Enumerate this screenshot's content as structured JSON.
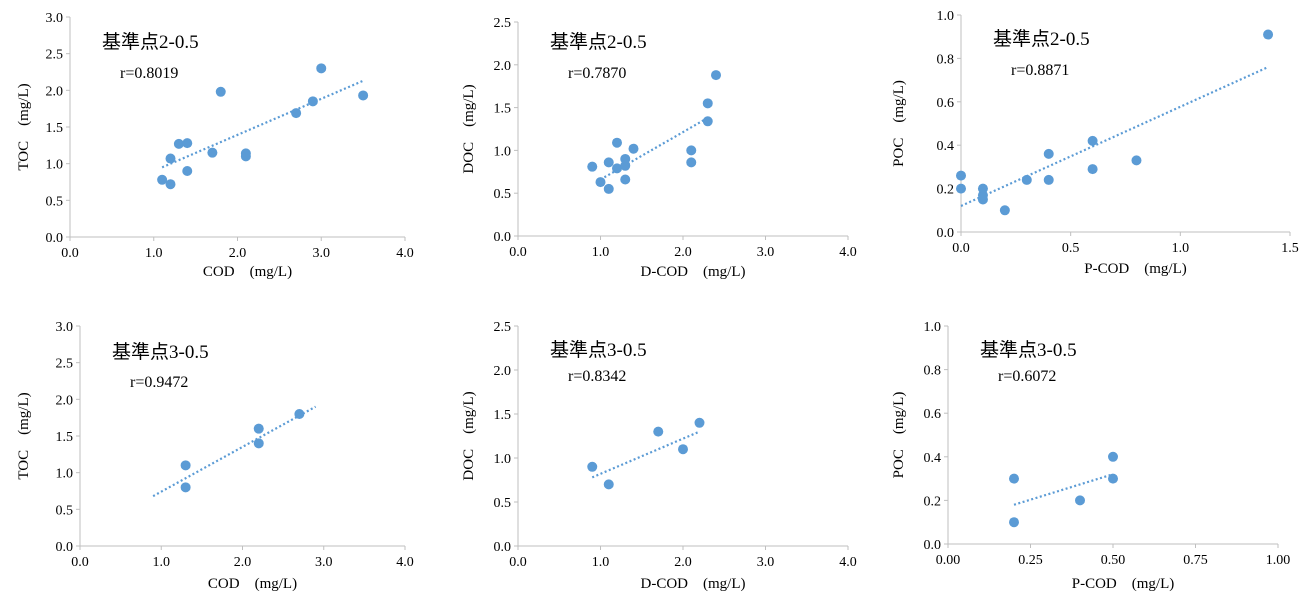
{
  "colors": {
    "marker": "#5b9bd5",
    "trend": "#5b9bd5",
    "axis": "#bfbfbf",
    "text": "#000000"
  },
  "chart_data": [
    {
      "type": "scatter",
      "title": "基準点2-0.5",
      "annotation": "r=0.8019",
      "xlabel": "COD　(mg/L)",
      "ylabel": "TOC　(mg/L)",
      "xlim": [
        0,
        4
      ],
      "ylim": [
        0,
        3
      ],
      "xticks": [
        0,
        1,
        2,
        3,
        4
      ],
      "yticks": [
        0,
        0.5,
        1,
        1.5,
        2,
        2.5,
        3
      ],
      "xtick_labels": [
        "0.0",
        "1.0",
        "2.0",
        "3.0",
        "4.0"
      ],
      "ytick_labels": [
        "0.0",
        "0.5",
        "1.0",
        "1.5",
        "2.0",
        "2.5",
        "3.0"
      ],
      "x": [
        1.1,
        1.2,
        1.2,
        1.3,
        1.4,
        1.4,
        1.7,
        1.8,
        2.1,
        2.1,
        2.7,
        2.9,
        3.0,
        3.5
      ],
      "y": [
        0.78,
        0.72,
        1.07,
        1.27,
        0.9,
        1.28,
        1.15,
        1.98,
        1.1,
        1.14,
        1.69,
        1.85,
        2.3,
        1.93
      ],
      "trendline": {
        "x": [
          1.1,
          3.5
        ],
        "y": [
          0.95,
          2.13
        ]
      }
    },
    {
      "type": "scatter",
      "title": "基準点2-0.5",
      "annotation": "r=0.7870",
      "xlabel": "D-COD　(mg/L)",
      "ylabel": "DOC　(mg/L)",
      "xlim": [
        0,
        4
      ],
      "ylim": [
        0,
        2.5
      ],
      "xticks": [
        0,
        1,
        2,
        3,
        4
      ],
      "yticks": [
        0,
        0.5,
        1,
        1.5,
        2,
        2.5
      ],
      "xtick_labels": [
        "0.0",
        "1.0",
        "2.0",
        "3.0",
        "4.0"
      ],
      "ytick_labels": [
        "0.0",
        "0.5",
        "1.0",
        "1.5",
        "2.0",
        "2.5"
      ],
      "x": [
        0.9,
        1.0,
        1.1,
        1.1,
        1.2,
        1.2,
        1.3,
        1.3,
        1.3,
        1.4,
        2.1,
        2.1,
        2.3,
        2.3,
        2.4
      ],
      "y": [
        0.81,
        0.63,
        0.55,
        0.86,
        0.79,
        1.09,
        0.66,
        0.82,
        0.9,
        1.02,
        0.86,
        1.0,
        1.34,
        1.55,
        1.88
      ],
      "trendline": {
        "x": [
          1.0,
          2.3
        ],
        "y": [
          0.66,
          1.38
        ]
      }
    },
    {
      "type": "scatter",
      "title": "基準点2-0.5",
      "annotation": "r=0.8871",
      "xlabel": "P-COD　(mg/L)",
      "ylabel": "POC　(mg/L)",
      "xlim": [
        0,
        1.5
      ],
      "ylim": [
        0,
        1
      ],
      "xticks": [
        0,
        0.5,
        1,
        1.5
      ],
      "yticks": [
        0,
        0.2,
        0.4,
        0.6,
        0.8,
        1
      ],
      "xtick_labels": [
        "0.0",
        "0.5",
        "1.0",
        "1.5"
      ],
      "ytick_labels": [
        "0.0",
        "0.2",
        "0.4",
        "0.6",
        "0.8",
        "1.0"
      ],
      "x": [
        0.0,
        0.0,
        0.1,
        0.1,
        0.1,
        0.2,
        0.3,
        0.4,
        0.4,
        0.6,
        0.6,
        0.8,
        1.4
      ],
      "y": [
        0.2,
        0.26,
        0.15,
        0.17,
        0.2,
        0.1,
        0.24,
        0.24,
        0.36,
        0.29,
        0.42,
        0.33,
        0.91
      ],
      "trendline": {
        "x": [
          0.0,
          1.4
        ],
        "y": [
          0.12,
          0.76
        ]
      }
    },
    {
      "type": "scatter",
      "title": "基準点3-0.5",
      "annotation": "r=0.9472",
      "xlabel": "COD　(mg/L)",
      "ylabel": "TOC　(mg/L)",
      "xlim": [
        0,
        4
      ],
      "ylim": [
        0,
        3
      ],
      "xticks": [
        0,
        1,
        2,
        3,
        4
      ],
      "yticks": [
        0,
        0.5,
        1,
        1.5,
        2,
        2.5,
        3
      ],
      "xtick_labels": [
        "0.0",
        "1.0",
        "2.0",
        "3.0",
        "4.0"
      ],
      "ytick_labels": [
        "0.0",
        "0.5",
        "1.0",
        "1.5",
        "2.0",
        "2.5",
        "3.0"
      ],
      "x": [
        1.3,
        1.3,
        2.2,
        2.2,
        2.7
      ],
      "y": [
        0.8,
        1.1,
        1.4,
        1.6,
        1.8
      ],
      "trendline": {
        "x": [
          0.9,
          2.9
        ],
        "y": [
          0.68,
          1.9
        ]
      }
    },
    {
      "type": "scatter",
      "title": "基準点3-0.5",
      "annotation": "r=0.8342",
      "xlabel": "D-COD　(mg/L)",
      "ylabel": "DOC　(mg/L)",
      "xlim": [
        0,
        4
      ],
      "ylim": [
        0,
        2.5
      ],
      "xticks": [
        0,
        1,
        2,
        3,
        4
      ],
      "yticks": [
        0,
        0.5,
        1,
        1.5,
        2,
        2.5
      ],
      "xtick_labels": [
        "0.0",
        "1.0",
        "2.0",
        "3.0",
        "4.0"
      ],
      "ytick_labels": [
        "0.0",
        "0.5",
        "1.0",
        "1.5",
        "2.0",
        "2.5"
      ],
      "x": [
        0.9,
        1.1,
        1.7,
        2.0,
        2.2
      ],
      "y": [
        0.9,
        0.7,
        1.3,
        1.1,
        1.4
      ],
      "trendline": {
        "x": [
          0.9,
          2.2
        ],
        "y": [
          0.78,
          1.3
        ]
      }
    },
    {
      "type": "scatter",
      "title": "基準点3-0.5",
      "annotation": "r=0.6072",
      "xlabel": "P-COD　(mg/L)",
      "ylabel": "POC　(mg/L)",
      "xlim": [
        0,
        1
      ],
      "ylim": [
        0,
        1
      ],
      "xticks": [
        0,
        0.25,
        0.5,
        0.75,
        1
      ],
      "yticks": [
        0,
        0.2,
        0.4,
        0.6,
        0.8,
        1
      ],
      "xtick_labels": [
        "0.00",
        "0.25",
        "0.50",
        "0.75",
        "1.00"
      ],
      "ytick_labels": [
        "0.0",
        "0.2",
        "0.4",
        "0.6",
        "0.8",
        "1.0"
      ],
      "x": [
        0.2,
        0.2,
        0.4,
        0.5,
        0.5
      ],
      "y": [
        0.1,
        0.3,
        0.2,
        0.3,
        0.4
      ],
      "trendline": {
        "x": [
          0.2,
          0.5
        ],
        "y": [
          0.18,
          0.32
        ]
      }
    }
  ]
}
